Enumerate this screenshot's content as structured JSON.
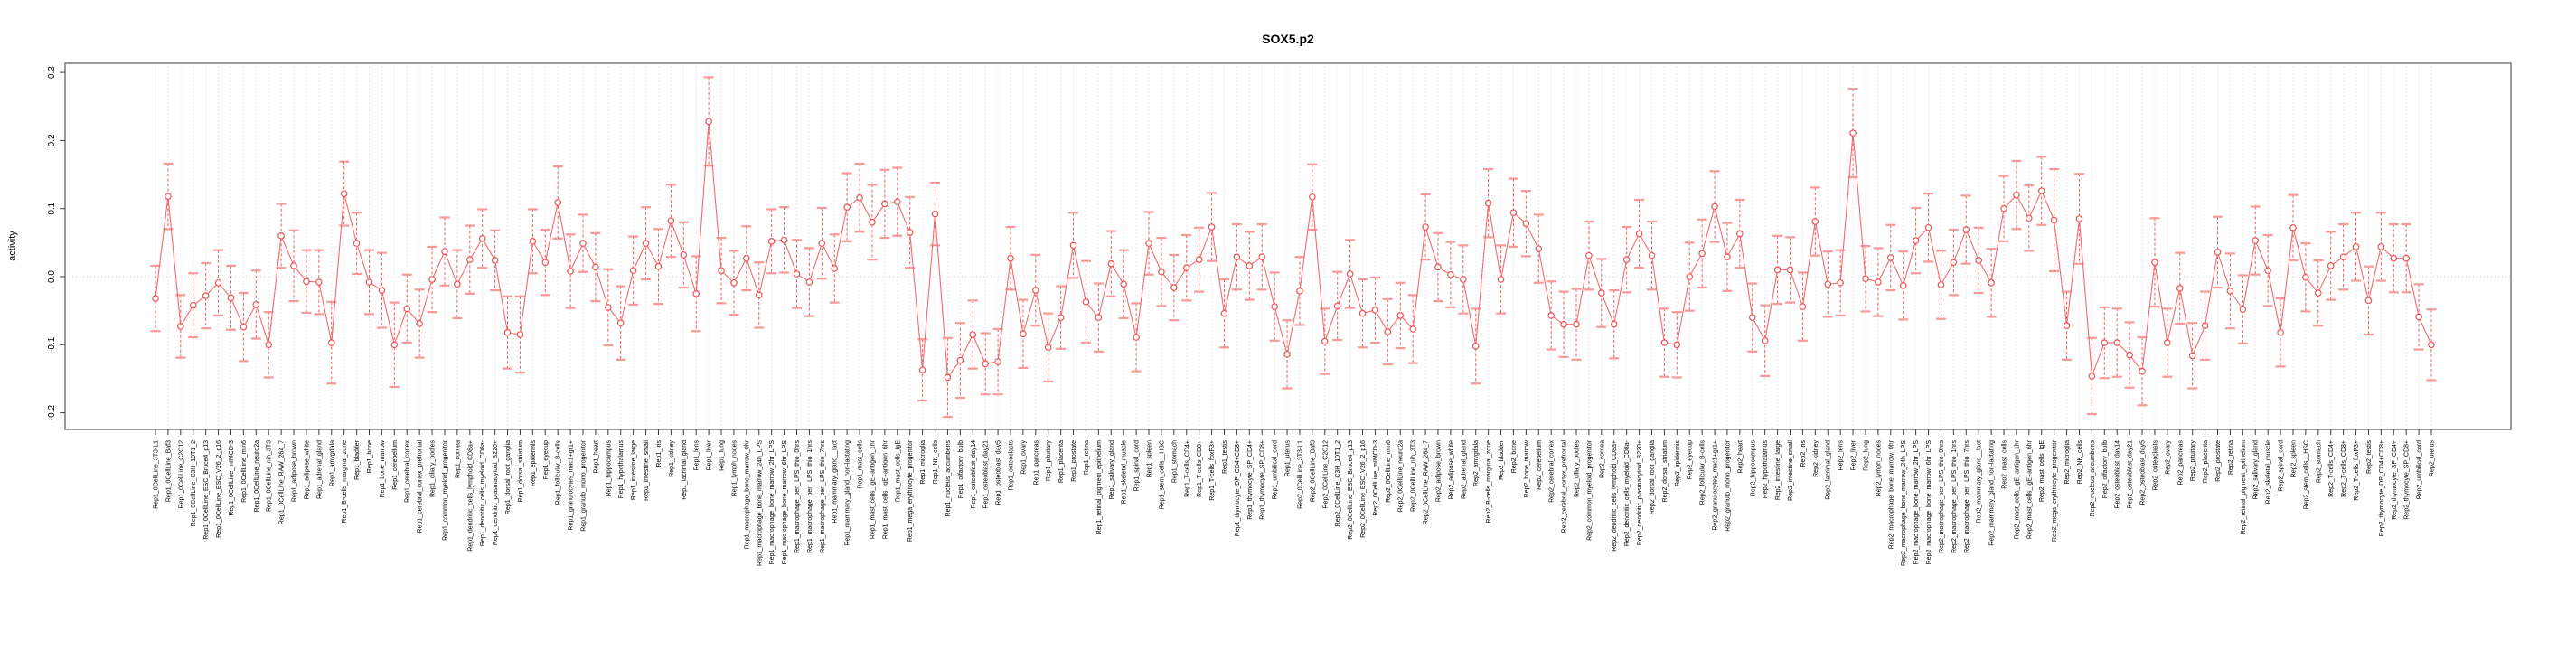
{
  "title": "SOX5.p2",
  "ylabel": "activity",
  "colors": {
    "series_line": "#f46a6a",
    "point_stroke": "#ee5252",
    "point_fill": "#ffffff",
    "error_stem": "#f25c5c",
    "error_cap": "#f79999",
    "gridline": "#d9d9d9",
    "plot_border": "#828282",
    "tick": "#3a3a3a",
    "label_text": "#000000"
  },
  "chart_data": {
    "type": "line",
    "subtype": "points-with-error-bars",
    "title": "SOX5.p2",
    "xlabel": "",
    "ylabel": "activity",
    "ylim": [
      -0.224,
      0.313
    ],
    "ytick_values": [
      0.3,
      0.2,
      0.1,
      0.0,
      -0.1,
      -0.2
    ],
    "ytick_labels": [
      "0.3",
      "0.2",
      "0.1",
      "0.0",
      "-0.1",
      "-0.2"
    ],
    "grid": "vertical dotted line at every category; horizontal dotted line at y=0",
    "legend": "none",
    "categories": [
      "Rep1_0CellLine_3T3-L1",
      "Rep1_0CellLine_Baf3",
      "Rep1_0CellLine_C2C12",
      "Rep1_0CellLine_C3H_10T1_2",
      "Rep1_0CellLine_ESC_Bruce4_p13",
      "Rep1_0CellLine_ESC_V26_2_p16",
      "Rep1_0CellLine_mIMCD-3",
      "Rep1_0CellLine_min6",
      "Rep1_0CellLine_neuro2a",
      "Rep1_0CellLine_nih_3T3",
      "Rep1_0CellLine_RAW_264_7",
      "Rep1_adipose_brown",
      "Rep1_adipose_white",
      "Rep1_adrenal_gland",
      "Rep1_amygdala",
      "Rep1_B-cells_marginal_zone",
      "Rep1_bladder",
      "Rep1_bone",
      "Rep1_bone_marrow",
      "Rep1_cerebellum",
      "Rep1_cerebral_cortex",
      "Rep1_cerebral_cortex_prefrontal",
      "Rep1_ciliary_bodies",
      "Rep1_common_myeloid_progenitor",
      "Rep1_cornea",
      "Rep1_dendritic_cells_lymphoid_CD8a+",
      "Rep1_dendritic_cells_myeloid_CD8a-",
      "Rep1_dendritic_plasmacytoid_B220+",
      "Rep1_dorsal_root_ganglia",
      "Rep1_dorsal_striatum",
      "Rep1_epidermis",
      "Rep1_eyecup",
      "Rep1_follicular_B-cells",
      "Rep1_granulocytes_mac1+gr1+",
      "Rep1_granulo_mono_progenitor",
      "Rep1_heart",
      "Rep1_hippocampus",
      "Rep1_hypothalamus",
      "Rep1_intestine_large",
      "Rep1_intestine_small",
      "Rep1_iris",
      "Rep1_kidney",
      "Rep1_lacrimal_gland",
      "Rep1_lens",
      "Rep1_liver",
      "Rep1_lung",
      "Rep1_lymph_nodes",
      "Rep1_macrophage_bone_marrow_0hr",
      "Rep1_macrophage_bone_marrow_24h_LPS",
      "Rep1_macrophage_bone_marrow_2hr_LPS",
      "Rep1_macrophage_bone_marrow_6hr_LPS",
      "Rep1_macrophage_peri_LPS_thio_0hrs",
      "Rep1_macrophage_peri_LPS_thio_1hrs",
      "Rep1_macrophage_peri_LPS_thio_7hrs",
      "Rep1_mammary_gland__lact",
      "Rep1_mammary_gland_non-lactating",
      "Rep1_mast_cells",
      "Rep1_mast_cells_IgE+antigen_1hr",
      "Rep1_mast_cells_IgE+antigen_6hr",
      "Rep1_mast_cells_IgE",
      "Rep1_mega_erythrocyte_progenitor",
      "Rep1_microglia",
      "Rep1_NK_cells",
      "Rep1_nucleus_accumbens",
      "Rep1_olfactory_bulb",
      "Rep1_osteoblast_day14",
      "Rep1_osteoblast_day21",
      "Rep1_osteoblast_day5",
      "Rep1_osteoclasts",
      "Rep1_ovary",
      "Rep1_pancreas",
      "Rep1_pituitary",
      "Rep1_placenta",
      "Rep1_prostate",
      "Rep1_retina",
      "Rep1_retinal_pigment_epithelium",
      "Rep1_salivary_gland",
      "Rep1_skeletal_muscle",
      "Rep1_spinal_cord",
      "Rep1_spleen",
      "Rep1_stem_cells__HSC",
      "Rep1_stomach",
      "Rep1_T-cells_CD4+",
      "Rep1_T-cells_CD8+",
      "Rep1_T-cells_foxP3+",
      "Rep1_testis",
      "Rep1_thymocyte_DP_CD4+CD8+",
      "Rep1_thymocyte_SP_CD4+",
      "Rep1_thymocyte_SP_CD8+",
      "Rep1_umbilical_cord",
      "Rep1_uterus",
      "Rep2_0CellLine_3T3-L1",
      "Rep2_0CellLine_Baf3",
      "Rep2_0CellLine_C2C12",
      "Rep2_0CellLine_C3H_10T1_2",
      "Rep2_0CellLine_ESC_Bruce4_p13",
      "Rep2_0CellLine_ESC_V26_2_p16",
      "Rep2_0CellLine_mIMCD-3",
      "Rep2_0CellLine_min6",
      "Rep2_0CellLine_neuro2a",
      "Rep2_0CellLine_nih_3T3",
      "Rep2_0CellLine_RAW_264_7",
      "Rep2_adipose_brown",
      "Rep2_adipose_white",
      "Rep2_adrenal_gland",
      "Rep2_amygdala",
      "Rep2_B-cells_marginal_zone",
      "Rep2_bladder",
      "Rep2_bone",
      "Rep2_bone_marrow",
      "Rep2_cerebellum",
      "Rep2_cerebral_cortex",
      "Rep2_cerebral_cortex_prefrontal",
      "Rep2_ciliary_bodies",
      "Rep2_common_myeloid_progenitor",
      "Rep2_cornea",
      "Rep2_dendritic_cells_lymphoid_CD8a+",
      "Rep2_dendritic_cells_myeloid_CD8a-",
      "Rep2_dendritic_plasmacytoid_B220+",
      "Rep2_dorsal_root_ganglia",
      "Rep2_dorsal_striatum",
      "Rep2_epidermis",
      "Rep2_eyecup",
      "Rep2_follicular_B-cells",
      "Rep2_granulocytes_mac1+gr1+",
      "Rep2_granulo_mono_progenitor",
      "Rep2_heart",
      "Rep2_hippocampus",
      "Rep2_hypothalamus",
      "Rep2_intestine_large",
      "Rep2_intestine_small",
      "Rep2_iris",
      "Rep2_kidney",
      "Rep2_lacrimal_gland",
      "Rep2_lens",
      "Rep2_liver",
      "Rep2_lung",
      "Rep2_lymph_nodes",
      "Rep2_macrophage_bone_marrow_0hr",
      "Rep2_macrophage_bone_marrow_24h_LPS",
      "Rep2_macrophage_bone_marrow_2hr_LPS",
      "Rep2_macrophage_bone_marrow_6hr_LPS",
      "Rep2_macrophage_peri_LPS_thio_0hrs",
      "Rep2_macrophage_peri_LPS_thio_1hrs",
      "Rep2_macrophage_peri_LPS_thio_7hrs",
      "Rep2_mammary_gland__lact",
      "Rep2_mammary_gland_non-lactating",
      "Rep2_mast_cells",
      "Rep2_mast_cells_IgE+antigen_1hr",
      "Rep2_mast_cells_IgE+antigen_6hr",
      "Rep2_mast_cells_IgE",
      "Rep2_mega_erythrocyte_progenitor",
      "Rep2_microglia",
      "Rep2_NK_cells",
      "Rep2_nucleus_accumbens",
      "Rep2_olfactory_bulb",
      "Rep2_osteoblast_day14",
      "Rep2_osteoblast_day21",
      "Rep2_osteoblast_day5",
      "Rep2_osteoclasts",
      "Rep2_ovary",
      "Rep2_pancreas",
      "Rep2_pituitary",
      "Rep2_placenta",
      "Rep2_prostate",
      "Rep2_retina",
      "Rep2_retinal_pigment_epithelium",
      "Rep2_salivary_gland",
      "Rep2_skeletal_muscle",
      "Rep2_spinal_cord",
      "Rep2_spleen",
      "Rep2_stem_cells__HSC",
      "Rep2_stomach",
      "Rep2_T-cells_CD4+",
      "Rep2_T-cells_CD8+",
      "Rep2_T-cells_foxP3+",
      "Rep2_testis",
      "Rep2_thymocyte_DP_CD4+CD8+",
      "Rep2_thymocyte_SP_CD4+",
      "Rep2_thymocyte_SP_CD8+",
      "Rep2_umbilical_cord",
      "Rep2_uterus"
    ],
    "values": [
      -0.032,
      0.118,
      -0.073,
      -0.042,
      -0.028,
      -0.009,
      -0.031,
      -0.074,
      -0.041,
      -0.1,
      0.06,
      0.016,
      -0.007,
      -0.008,
      -0.097,
      0.122,
      0.049,
      -0.008,
      -0.02,
      -0.1,
      -0.047,
      -0.069,
      -0.004,
      0.037,
      -0.011,
      0.025,
      0.056,
      0.024,
      -0.082,
      -0.085,
      0.052,
      0.021,
      0.109,
      0.008,
      0.049,
      0.014,
      -0.045,
      -0.068,
      0.009,
      0.049,
      0.015,
      0.082,
      0.032,
      -0.025,
      0.228,
      0.009,
      -0.009,
      0.027,
      -0.027,
      0.052,
      0.054,
      0.004,
      -0.008,
      0.049,
      0.012,
      0.102,
      0.116,
      0.08,
      0.107,
      0.11,
      0.065,
      -0.137,
      0.092,
      -0.148,
      -0.123,
      -0.085,
      -0.128,
      -0.125,
      0.027,
      -0.084,
      -0.02,
      -0.104,
      -0.06,
      0.046,
      -0.037,
      -0.06,
      0.019,
      -0.011,
      -0.089,
      0.049,
      0.007,
      -0.016,
      0.013,
      0.025,
      0.073,
      -0.054,
      0.029,
      0.016,
      0.029,
      -0.044,
      -0.114,
      -0.021,
      0.117,
      -0.095,
      -0.043,
      0.004,
      -0.054,
      -0.049,
      -0.081,
      -0.057,
      -0.077,
      0.073,
      0.014,
      0.003,
      -0.004,
      -0.102,
      0.108,
      -0.004,
      0.094,
      0.078,
      0.041,
      -0.057,
      -0.07,
      -0.07,
      0.031,
      -0.024,
      -0.07,
      0.025,
      0.063,
      0.031,
      -0.097,
      -0.1,
      0.0,
      0.034,
      0.103,
      0.029,
      0.063,
      -0.06,
      -0.094,
      0.01,
      0.01,
      -0.044,
      0.081,
      -0.011,
      -0.009,
      0.211,
      -0.003,
      -0.008,
      0.028,
      -0.013,
      0.053,
      0.072,
      -0.012,
      0.021,
      0.069,
      0.024,
      -0.009,
      0.1,
      0.12,
      0.086,
      0.126,
      0.083,
      -0.072,
      0.085,
      -0.146,
      -0.097,
      -0.097,
      -0.115,
      -0.139,
      0.021,
      -0.097,
      -0.017,
      -0.116,
      -0.072,
      0.036,
      -0.021,
      -0.048,
      0.053,
      0.009,
      -0.082,
      0.072,
      -0.001,
      -0.024,
      0.016,
      0.029,
      0.044,
      -0.035,
      0.044,
      0.027,
      0.027,
      -0.059,
      -0.1
    ],
    "errors": [
      0.048,
      0.048,
      0.046,
      0.047,
      0.048,
      0.048,
      0.047,
      0.05,
      0.05,
      0.048,
      0.047,
      0.052,
      0.046,
      0.047,
      0.06,
      0.047,
      0.045,
      0.047,
      0.055,
      0.062,
      0.05,
      0.05,
      0.048,
      0.05,
      0.05,
      0.05,
      0.043,
      0.044,
      0.053,
      0.056,
      0.047,
      0.048,
      0.053,
      0.054,
      0.042,
      0.05,
      0.056,
      0.054,
      0.05,
      0.053,
      0.055,
      0.053,
      0.048,
      0.055,
      0.065,
      0.048,
      0.047,
      0.047,
      0.048,
      0.047,
      0.048,
      0.05,
      0.05,
      0.052,
      0.05,
      0.05,
      0.05,
      0.055,
      0.05,
      0.05,
      0.052,
      0.045,
      0.046,
      0.058,
      0.055,
      0.05,
      0.045,
      0.048,
      0.046,
      0.05,
      0.052,
      0.05,
      0.046,
      0.048,
      0.06,
      0.05,
      0.048,
      0.05,
      0.05,
      0.046,
      0.05,
      0.048,
      0.048,
      0.047,
      0.05,
      0.05,
      0.048,
      0.05,
      0.048,
      0.05,
      0.05,
      0.05,
      0.048,
      0.048,
      0.05,
      0.05,
      0.05,
      0.048,
      0.048,
      0.048,
      0.05,
      0.048,
      0.05,
      0.048,
      0.05,
      0.055,
      0.05,
      0.05,
      0.05,
      0.048,
      0.05,
      0.05,
      0.048,
      0.052,
      0.05,
      0.05,
      0.05,
      0.048,
      0.05,
      0.05,
      0.05,
      0.048,
      0.05,
      0.05,
      0.052,
      0.05,
      0.05,
      0.05,
      0.052,
      0.05,
      0.048,
      0.05,
      0.05,
      0.048,
      0.048,
      0.065,
      0.048,
      0.05,
      0.048,
      0.05,
      0.048,
      0.05,
      0.05,
      0.048,
      0.05,
      0.048,
      0.05,
      0.048,
      0.05,
      0.048,
      0.05,
      0.075,
      0.05,
      0.066,
      0.056,
      0.052,
      0.05,
      0.048,
      0.05,
      0.065,
      0.05,
      0.052,
      0.048,
      0.05,
      0.052,
      0.055,
      0.05,
      0.05,
      0.052,
      0.05,
      0.048,
      0.05,
      0.048,
      0.05,
      0.048,
      0.05,
      0.05,
      0.05,
      0.05,
      0.05,
      0.048,
      0.052
    ]
  }
}
